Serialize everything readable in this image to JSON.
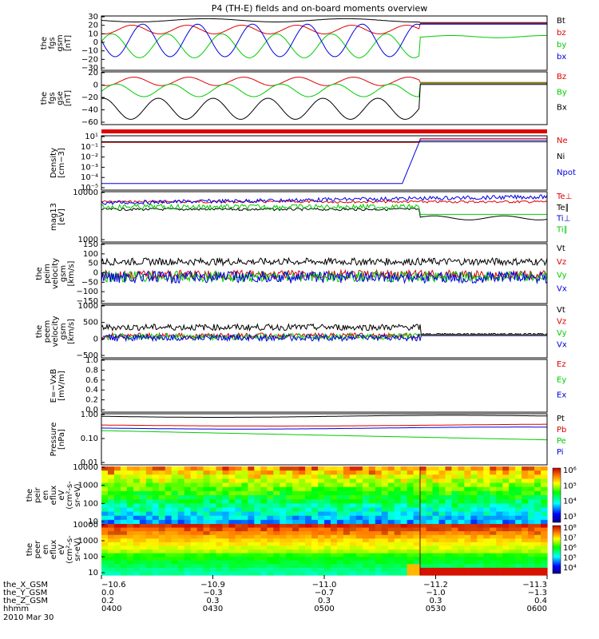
{
  "title": "P4 (TH-E) fields and on-board moments overview",
  "colors": {
    "black": "#000000",
    "red": "#e00000",
    "green": "#00cc00",
    "blue": "#0000e0"
  },
  "chart_data": [
    {
      "type": "line",
      "id": "fgs_gsm",
      "ylabel": [
        "the",
        "fgs",
        "gsm",
        "[nT]"
      ],
      "yticks": [
        "30",
        "20",
        "10",
        "0",
        "−10",
        "−20",
        "−30"
      ],
      "ylim": [
        -30,
        30
      ],
      "series": [
        {
          "name": "Bt",
          "color": "black"
        },
        {
          "name": "bz",
          "color": "red"
        },
        {
          "name": "by",
          "color": "green"
        },
        {
          "name": "bx",
          "color": "blue"
        }
      ]
    },
    {
      "type": "line",
      "id": "fgs_gse",
      "ylabel": [
        "the",
        "fgs",
        "gse",
        "[nT]"
      ],
      "yticks": [
        "20",
        "0",
        "−20",
        "−40",
        "−60"
      ],
      "ylim": [
        -70,
        20
      ],
      "series": [
        {
          "name": "Bz",
          "color": "red"
        },
        {
          "name": "By",
          "color": "green"
        },
        {
          "name": "Bx",
          "color": "black"
        }
      ]
    },
    {
      "type": "line",
      "id": "density",
      "ylabel": [
        "Density",
        "[cm−3]"
      ],
      "yticks": [
        "10¹",
        "10⁻¹",
        "10⁻²",
        "10⁻³",
        "10⁻⁴",
        "10⁻⁵"
      ],
      "scale": "log",
      "series": [
        {
          "name": "Ne",
          "color": "red"
        },
        {
          "name": "Ni",
          "color": "black"
        },
        {
          "name": "Npot",
          "color": "blue"
        }
      ]
    },
    {
      "type": "line",
      "id": "temperature",
      "ylabel": [
        "mag13",
        "[eV]"
      ],
      "yticks": [
        "10000",
        "1000"
      ],
      "scale": "log",
      "series": [
        {
          "name": "Te⊥",
          "color": "red"
        },
        {
          "name": "Te∥",
          "color": "black"
        },
        {
          "name": "Ti⊥",
          "color": "blue"
        },
        {
          "name": "Ti∥",
          "color": "green"
        }
      ]
    },
    {
      "type": "line",
      "id": "peim_velocity",
      "ylabel": [
        "the",
        "peim",
        "velocity",
        "gsm",
        "[km/s]"
      ],
      "yticks": [
        "150",
        "100",
        "50",
        "0",
        "−50",
        "−100",
        "−150"
      ],
      "ylim": [
        -150,
        150
      ],
      "series": [
        {
          "name": "Vt",
          "color": "black"
        },
        {
          "name": "Vz",
          "color": "red"
        },
        {
          "name": "Vy",
          "color": "green"
        },
        {
          "name": "Vx",
          "color": "blue"
        }
      ]
    },
    {
      "type": "line",
      "id": "peem_velocity",
      "ylabel": [
        "the",
        "peem",
        "velocity",
        "gsm",
        "[km/s]"
      ],
      "yticks": [
        "1000",
        "500",
        "0",
        "−500"
      ],
      "ylim": [
        -600,
        1000
      ],
      "series": [
        {
          "name": "Vt",
          "color": "black"
        },
        {
          "name": "Vz",
          "color": "red"
        },
        {
          "name": "Vy",
          "color": "green"
        },
        {
          "name": "Vx",
          "color": "blue"
        }
      ]
    },
    {
      "type": "line",
      "id": "efield",
      "ylabel": [
        "E=−VxB",
        "[mV/m]"
      ],
      "yticks": [
        "1.0",
        "0.8",
        "0.6",
        "0.4",
        "0.2",
        "0.0"
      ],
      "ylim": [
        0,
        1
      ],
      "series": [
        {
          "name": "Ez",
          "color": "red"
        },
        {
          "name": "Ey",
          "color": "green"
        },
        {
          "name": "Ex",
          "color": "blue"
        }
      ]
    },
    {
      "type": "line",
      "id": "pressure",
      "ylabel": [
        "Pressure",
        "[nPa]"
      ],
      "yticks": [
        "1.00",
        "0.10",
        "0.01"
      ],
      "scale": "log",
      "series": [
        {
          "name": "Pt",
          "color": "black"
        },
        {
          "name": "Pb",
          "color": "red"
        },
        {
          "name": "Pe",
          "color": "green"
        },
        {
          "name": "Pi",
          "color": "blue"
        }
      ]
    },
    {
      "type": "heatmap",
      "id": "peir_spectrogram",
      "ylabel": [
        "the",
        "peir",
        "en",
        "eflux",
        "eV",
        "(cm²-s-",
        "sr-eV)"
      ],
      "yticks": [
        "10000",
        "1000",
        "100",
        "10"
      ],
      "colorbar": [
        "10⁶",
        "10⁵",
        "10⁴",
        "10³"
      ]
    },
    {
      "type": "heatmap",
      "id": "peer_spectrogram",
      "ylabel": [
        "the",
        "peer",
        "en",
        "eflux",
        "eV",
        "(cm²-s-",
        "sr-eV)"
      ],
      "yticks": [
        "10000",
        "1000",
        "100",
        "10"
      ],
      "colorbar": [
        "10⁸",
        "10⁷",
        "10⁶",
        "10⁵",
        "10⁴"
      ]
    }
  ],
  "xaxis": {
    "rows": [
      {
        "label": "the_X_GSM",
        "values": [
          "−10.6",
          "−10.9",
          "−11.0",
          "−11.2",
          "−11.3"
        ]
      },
      {
        "label": "the_Y_GSM",
        "values": [
          "0.0",
          "−0.3",
          "−0.7",
          "−1.0",
          "−1.3"
        ]
      },
      {
        "label": "the_Z_GSM",
        "values": [
          "0.2",
          "0.3",
          "0.3",
          "0.3",
          "0.4"
        ]
      },
      {
        "label": "hhmm",
        "values": [
          "0400",
          "0430",
          "0500",
          "0530",
          "0600"
        ]
      }
    ],
    "date": "2010 Mar 30"
  }
}
